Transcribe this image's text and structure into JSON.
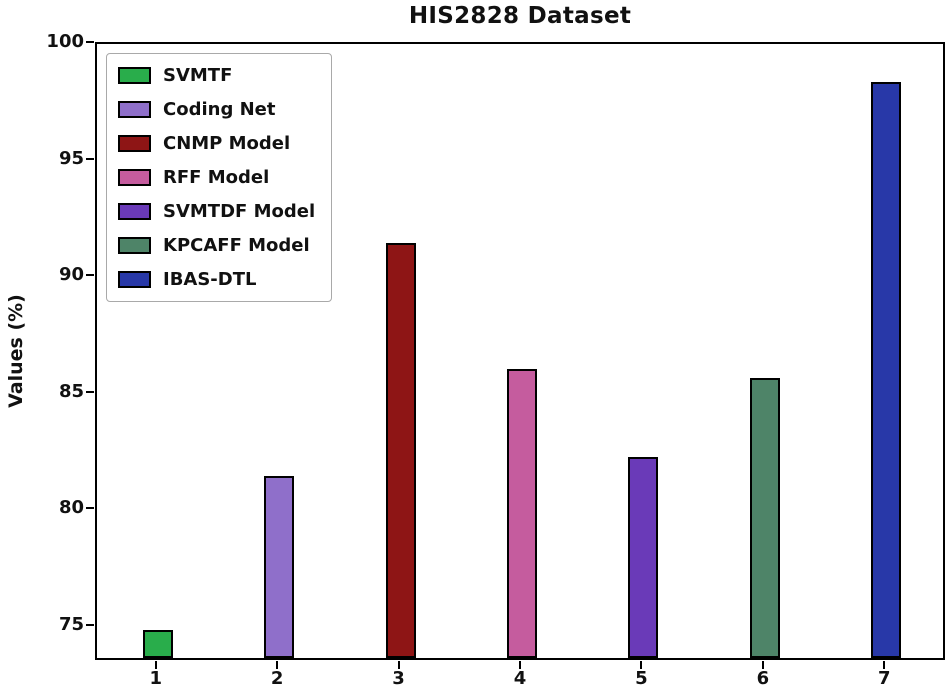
{
  "chart_data": {
    "type": "bar",
    "title": "HIS2828 Dataset",
    "xlabel": "",
    "ylabel": "Values (%)",
    "categories": [
      "1",
      "2",
      "3",
      "4",
      "5",
      "6",
      "7"
    ],
    "values": [
      74.7,
      81.3,
      91.3,
      85.9,
      82.1,
      85.5,
      98.2
    ],
    "colors": [
      "#29ad4b",
      "#8f6fca",
      "#8e1515",
      "#c55c9e",
      "#6a3ab8",
      "#4e8468",
      "#2838a8"
    ],
    "edge_color": "#000000",
    "ylim": [
      73.5,
      100
    ],
    "yticks": [
      75,
      80,
      85,
      90,
      95,
      100
    ],
    "grid": false,
    "legend_position": "upper left",
    "legend": [
      {
        "label": "SVMTF",
        "color": "#29ad4b"
      },
      {
        "label": "Coding Net",
        "color": "#8f6fca"
      },
      {
        "label": "CNMP Model",
        "color": "#8e1515"
      },
      {
        "label": "RFF Model",
        "color": "#c55c9e"
      },
      {
        "label": "SVMTDF Model",
        "color": "#6a3ab8"
      },
      {
        "label": "KPCAFF Model",
        "color": "#4e8468"
      },
      {
        "label": "IBAS-DTL",
        "color": "#2838a8"
      }
    ]
  }
}
